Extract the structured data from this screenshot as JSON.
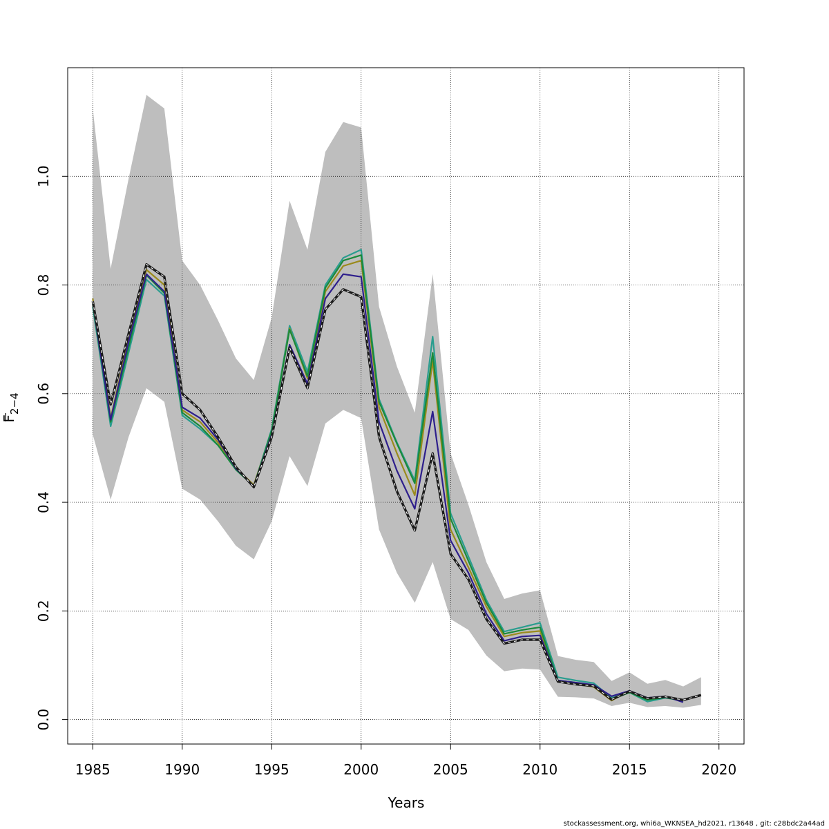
{
  "footer": "stockassessment.org, whi6a_WKNSEA_hd2021, r13648 , git: c28bdc2a44ad",
  "chart_data": {
    "type": "line",
    "xlabel": "Years",
    "ylabel_main": "F",
    "ylabel_sub": "2−4",
    "xlim": [
      1983.6,
      2021.4
    ],
    "ylim": [
      -0.045,
      1.2
    ],
    "x_ticks": [
      "1985",
      "1990",
      "1995",
      "2000",
      "2005",
      "2010",
      "2015",
      "2020"
    ],
    "y_ticks": [
      "0.0",
      "0.2",
      "0.4",
      "0.6",
      "0.8",
      "1.0"
    ],
    "grid": true,
    "band_color": "#bebebe",
    "confidence_band": {
      "x": [
        1985,
        1986,
        1987,
        1988,
        1989,
        1990,
        1991,
        1992,
        1993,
        1994,
        1995,
        1996,
        1997,
        1998,
        1999,
        2000,
        2001,
        2002,
        2003,
        2004,
        2005,
        2006,
        2007,
        2008,
        2009,
        2010,
        2011,
        2012,
        2013,
        2014,
        2015,
        2016,
        2017,
        2018,
        2019
      ],
      "upper": [
        1.125,
        0.83,
        0.995,
        1.15,
        1.125,
        0.845,
        0.8,
        0.735,
        0.665,
        0.625,
        0.74,
        0.955,
        0.865,
        1.045,
        1.1,
        1.09,
        0.76,
        0.65,
        0.565,
        0.82,
        0.49,
        0.395,
        0.29,
        0.222,
        0.232,
        0.238,
        0.117,
        0.11,
        0.106,
        0.071,
        0.087,
        0.066,
        0.073,
        0.061,
        0.078
      ],
      "lower": [
        0.525,
        0.405,
        0.52,
        0.61,
        0.585,
        0.425,
        0.405,
        0.365,
        0.32,
        0.295,
        0.365,
        0.485,
        0.43,
        0.545,
        0.57,
        0.555,
        0.35,
        0.27,
        0.215,
        0.29,
        0.185,
        0.165,
        0.118,
        0.089,
        0.094,
        0.092,
        0.042,
        0.041,
        0.039,
        0.025,
        0.031,
        0.023,
        0.025,
        0.022,
        0.027
      ]
    },
    "series": [
      {
        "color": "#2a9d8f",
        "dashed": false,
        "width": 2.2,
        "x": [
          1985,
          1986,
          1987,
          1988,
          1989,
          1990,
          1991,
          1992,
          1993,
          1994,
          1995,
          1996,
          1997,
          1998,
          1999,
          2000,
          2001,
          2002,
          2003,
          2004,
          2005,
          2006,
          2007,
          2008,
          2009,
          2010,
          2011,
          2012,
          2013,
          2014,
          2015,
          2016,
          2017,
          2018
        ],
        "y": [
          0.76,
          0.54,
          0.675,
          0.81,
          0.78,
          0.56,
          0.535,
          0.505,
          0.46,
          0.43,
          0.535,
          0.725,
          0.64,
          0.8,
          0.85,
          0.865,
          0.59,
          0.51,
          0.44,
          0.705,
          0.38,
          0.3,
          0.22,
          0.162,
          0.17,
          0.178,
          0.078,
          0.072,
          0.067,
          0.04,
          0.05,
          0.033,
          0.04,
          0.035
        ]
      },
      {
        "color": "#9a8a1c",
        "dashed": false,
        "width": 2.2,
        "x": [
          1985,
          1986,
          1987,
          1988,
          1989,
          1990,
          1991,
          1992,
          1993,
          1994,
          1995,
          1996,
          1997,
          1998,
          1999,
          2000,
          2001,
          2002,
          2003,
          2004,
          2005,
          2006,
          2007,
          2008,
          2009,
          2010,
          2011,
          2012,
          2013,
          2014,
          2015,
          2016,
          2017,
          2018
        ],
        "y": [
          0.775,
          0.555,
          0.7,
          0.828,
          0.8,
          0.57,
          0.548,
          0.51,
          0.463,
          0.432,
          0.53,
          0.72,
          0.628,
          0.788,
          0.835,
          0.845,
          0.575,
          0.49,
          0.413,
          0.66,
          0.35,
          0.28,
          0.208,
          0.153,
          0.16,
          0.163,
          0.07,
          0.066,
          0.06,
          0.035,
          0.053,
          0.038,
          0.043,
          0.033
        ]
      },
      {
        "color": "#1a8a3a",
        "dashed": false,
        "width": 2.2,
        "x": [
          1985,
          1986,
          1987,
          1988,
          1989,
          1990,
          1991,
          1992,
          1993,
          1994,
          1995,
          1996,
          1997,
          1998,
          1999,
          2000,
          2001,
          2002,
          2003,
          2004,
          2005,
          2006,
          2007,
          2008,
          2009,
          2010,
          2011,
          2012,
          2013,
          2014,
          2015,
          2016,
          2017,
          2018
        ],
        "y": [
          0.765,
          0.548,
          0.685,
          0.818,
          0.785,
          0.565,
          0.54,
          0.505,
          0.46,
          0.43,
          0.532,
          0.718,
          0.632,
          0.795,
          0.845,
          0.855,
          0.585,
          0.508,
          0.435,
          0.675,
          0.37,
          0.292,
          0.215,
          0.158,
          0.165,
          0.17,
          0.072,
          0.068,
          0.062,
          0.037,
          0.05,
          0.036,
          0.041,
          0.034
        ]
      },
      {
        "color": "#2e1f8c",
        "dashed": false,
        "width": 2.2,
        "x": [
          1985,
          1986,
          1987,
          1988,
          1989,
          1990,
          1991,
          1992,
          1993,
          1994,
          1995,
          1996,
          1997,
          1998,
          1999,
          2000,
          2001,
          2002,
          2003,
          2004,
          2005,
          2006,
          2007,
          2008,
          2009,
          2010,
          2011,
          2012,
          2013,
          2014,
          2015,
          2016,
          2017,
          2018
        ],
        "y": [
          0.768,
          0.552,
          0.695,
          0.82,
          0.788,
          0.575,
          0.555,
          0.515,
          0.462,
          0.43,
          0.525,
          0.69,
          0.618,
          0.775,
          0.82,
          0.815,
          0.548,
          0.458,
          0.388,
          0.567,
          0.33,
          0.27,
          0.195,
          0.145,
          0.153,
          0.155,
          0.072,
          0.068,
          0.064,
          0.043,
          0.053,
          0.04,
          0.043,
          0.032
        ]
      },
      {
        "color": "#1a1a1a",
        "dashed": true,
        "width": 2.2,
        "x": [
          1985,
          1986,
          1987,
          1988,
          1989,
          1990,
          1991,
          1992,
          1993,
          1994,
          1995,
          1996,
          1997,
          1998,
          1999,
          2000,
          2001,
          2002,
          2003,
          2004,
          2005,
          2006,
          2007,
          2008,
          2009,
          2010,
          2011,
          2012,
          2013,
          2014,
          2015,
          2016,
          2017,
          2018,
          2019
        ],
        "y": [
          0.77,
          0.58,
          0.71,
          0.838,
          0.815,
          0.6,
          0.57,
          0.52,
          0.465,
          0.428,
          0.52,
          0.685,
          0.61,
          0.755,
          0.792,
          0.778,
          0.52,
          0.42,
          0.348,
          0.49,
          0.305,
          0.258,
          0.185,
          0.14,
          0.147,
          0.147,
          0.07,
          0.065,
          0.062,
          0.037,
          0.052,
          0.039,
          0.042,
          0.036,
          0.045
        ]
      }
    ]
  }
}
